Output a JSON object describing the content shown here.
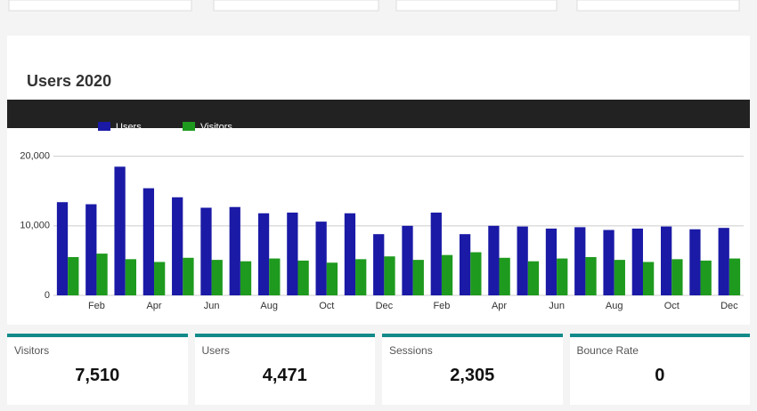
{
  "header": {
    "title": "Users 2020"
  },
  "chart_data": {
    "type": "bar",
    "categories": [
      null,
      "Feb",
      null,
      "Apr",
      null,
      "Jun",
      null,
      "Aug",
      null,
      "Oct",
      null,
      "Dec",
      null,
      "Feb",
      null,
      "Apr",
      null,
      "Jun",
      null,
      "Aug",
      null,
      "Oct",
      null,
      "Dec"
    ],
    "series": [
      {
        "name": "Users",
        "color": "#1a1aa6",
        "values": [
          13400,
          13100,
          18500,
          15400,
          14100,
          12600,
          12700,
          11800,
          11900,
          10600,
          11800,
          8800,
          10000,
          11900,
          8800,
          10000,
          9900,
          9600,
          9800,
          9400,
          9600,
          9900,
          9500,
          9700
        ]
      },
      {
        "name": "Visitors",
        "color": "#1e9a1e",
        "values": [
          5500,
          6000,
          5200,
          4800,
          5400,
          5100,
          4900,
          5300,
          5000,
          4700,
          5200,
          5600,
          5100,
          5800,
          6200,
          5400,
          4900,
          5300,
          5500,
          5100,
          4800,
          5200,
          5000,
          5300
        ]
      }
    ],
    "ylim": [
      0,
      22000
    ],
    "yticks": [
      {
        "value": 0,
        "label": "0"
      },
      {
        "value": 10000,
        "label": "10,000"
      },
      {
        "value": 20000,
        "label": "20,000"
      }
    ],
    "grid": true,
    "legend": "top-left"
  },
  "stats": [
    {
      "label": "Visitors",
      "value": "7,510"
    },
    {
      "label": "Users",
      "value": "4,471"
    },
    {
      "label": "Sessions",
      "value": "2,305"
    },
    {
      "label": "Bounce Rate",
      "value": "0"
    }
  ]
}
